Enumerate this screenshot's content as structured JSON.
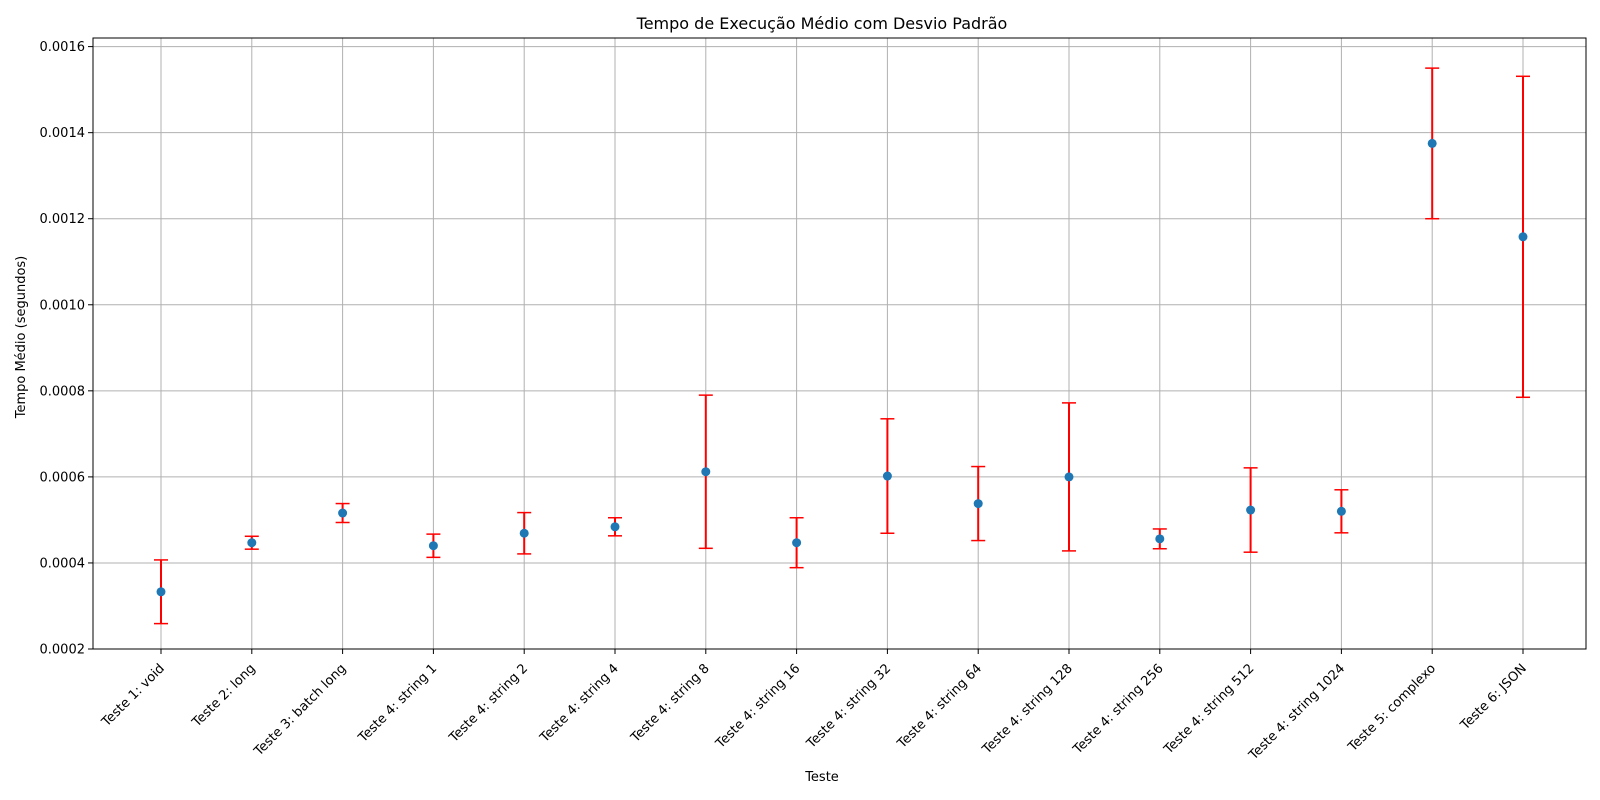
{
  "chart_data": {
    "type": "scatter",
    "title": "Tempo de Execução Médio com Desvio Padrão",
    "xlabel": "Teste",
    "ylabel": "Tempo Médio (segundos)",
    "categories": [
      "Teste 1: void",
      "Teste 2: long",
      "Teste 3: batch long",
      "Teste 4: string 1",
      "Teste 4: string 2",
      "Teste 4: string 4",
      "Teste 4: string 8",
      "Teste 4: string 16",
      "Teste 4: string 32",
      "Teste 4: string 64",
      "Teste 4: string 128",
      "Teste 4: string 256",
      "Teste 4: string 512",
      "Teste 4: string 1024",
      "Teste 5: complexo",
      "Teste 6: JSON"
    ],
    "values": [
      0.000333,
      0.000447,
      0.000516,
      0.00044,
      0.000469,
      0.000484,
      0.000612,
      0.000447,
      0.000602,
      0.000538,
      0.0006,
      0.000456,
      0.000523,
      0.00052,
      0.001375,
      0.001158
    ],
    "errors": [
      7.4e-05,
      1.5e-05,
      2.2e-05,
      2.7e-05,
      4.8e-05,
      2.1e-05,
      0.000178,
      5.8e-05,
      0.000133,
      8.6e-05,
      0.000172,
      2.3e-05,
      9.8e-05,
      5e-05,
      0.000175,
      0.000373
    ],
    "ylim": [
      0.0002,
      0.00162
    ],
    "yticks": [
      "0.0002",
      "0.0004",
      "0.0006",
      "0.0008",
      "0.0010",
      "0.0012",
      "0.0014",
      "0.0016"
    ],
    "grid": true,
    "colors": {
      "marker": "#1f77b4",
      "errorbar": "#ff0000",
      "grid": "#b0b0b0",
      "axis": "#000000"
    }
  }
}
